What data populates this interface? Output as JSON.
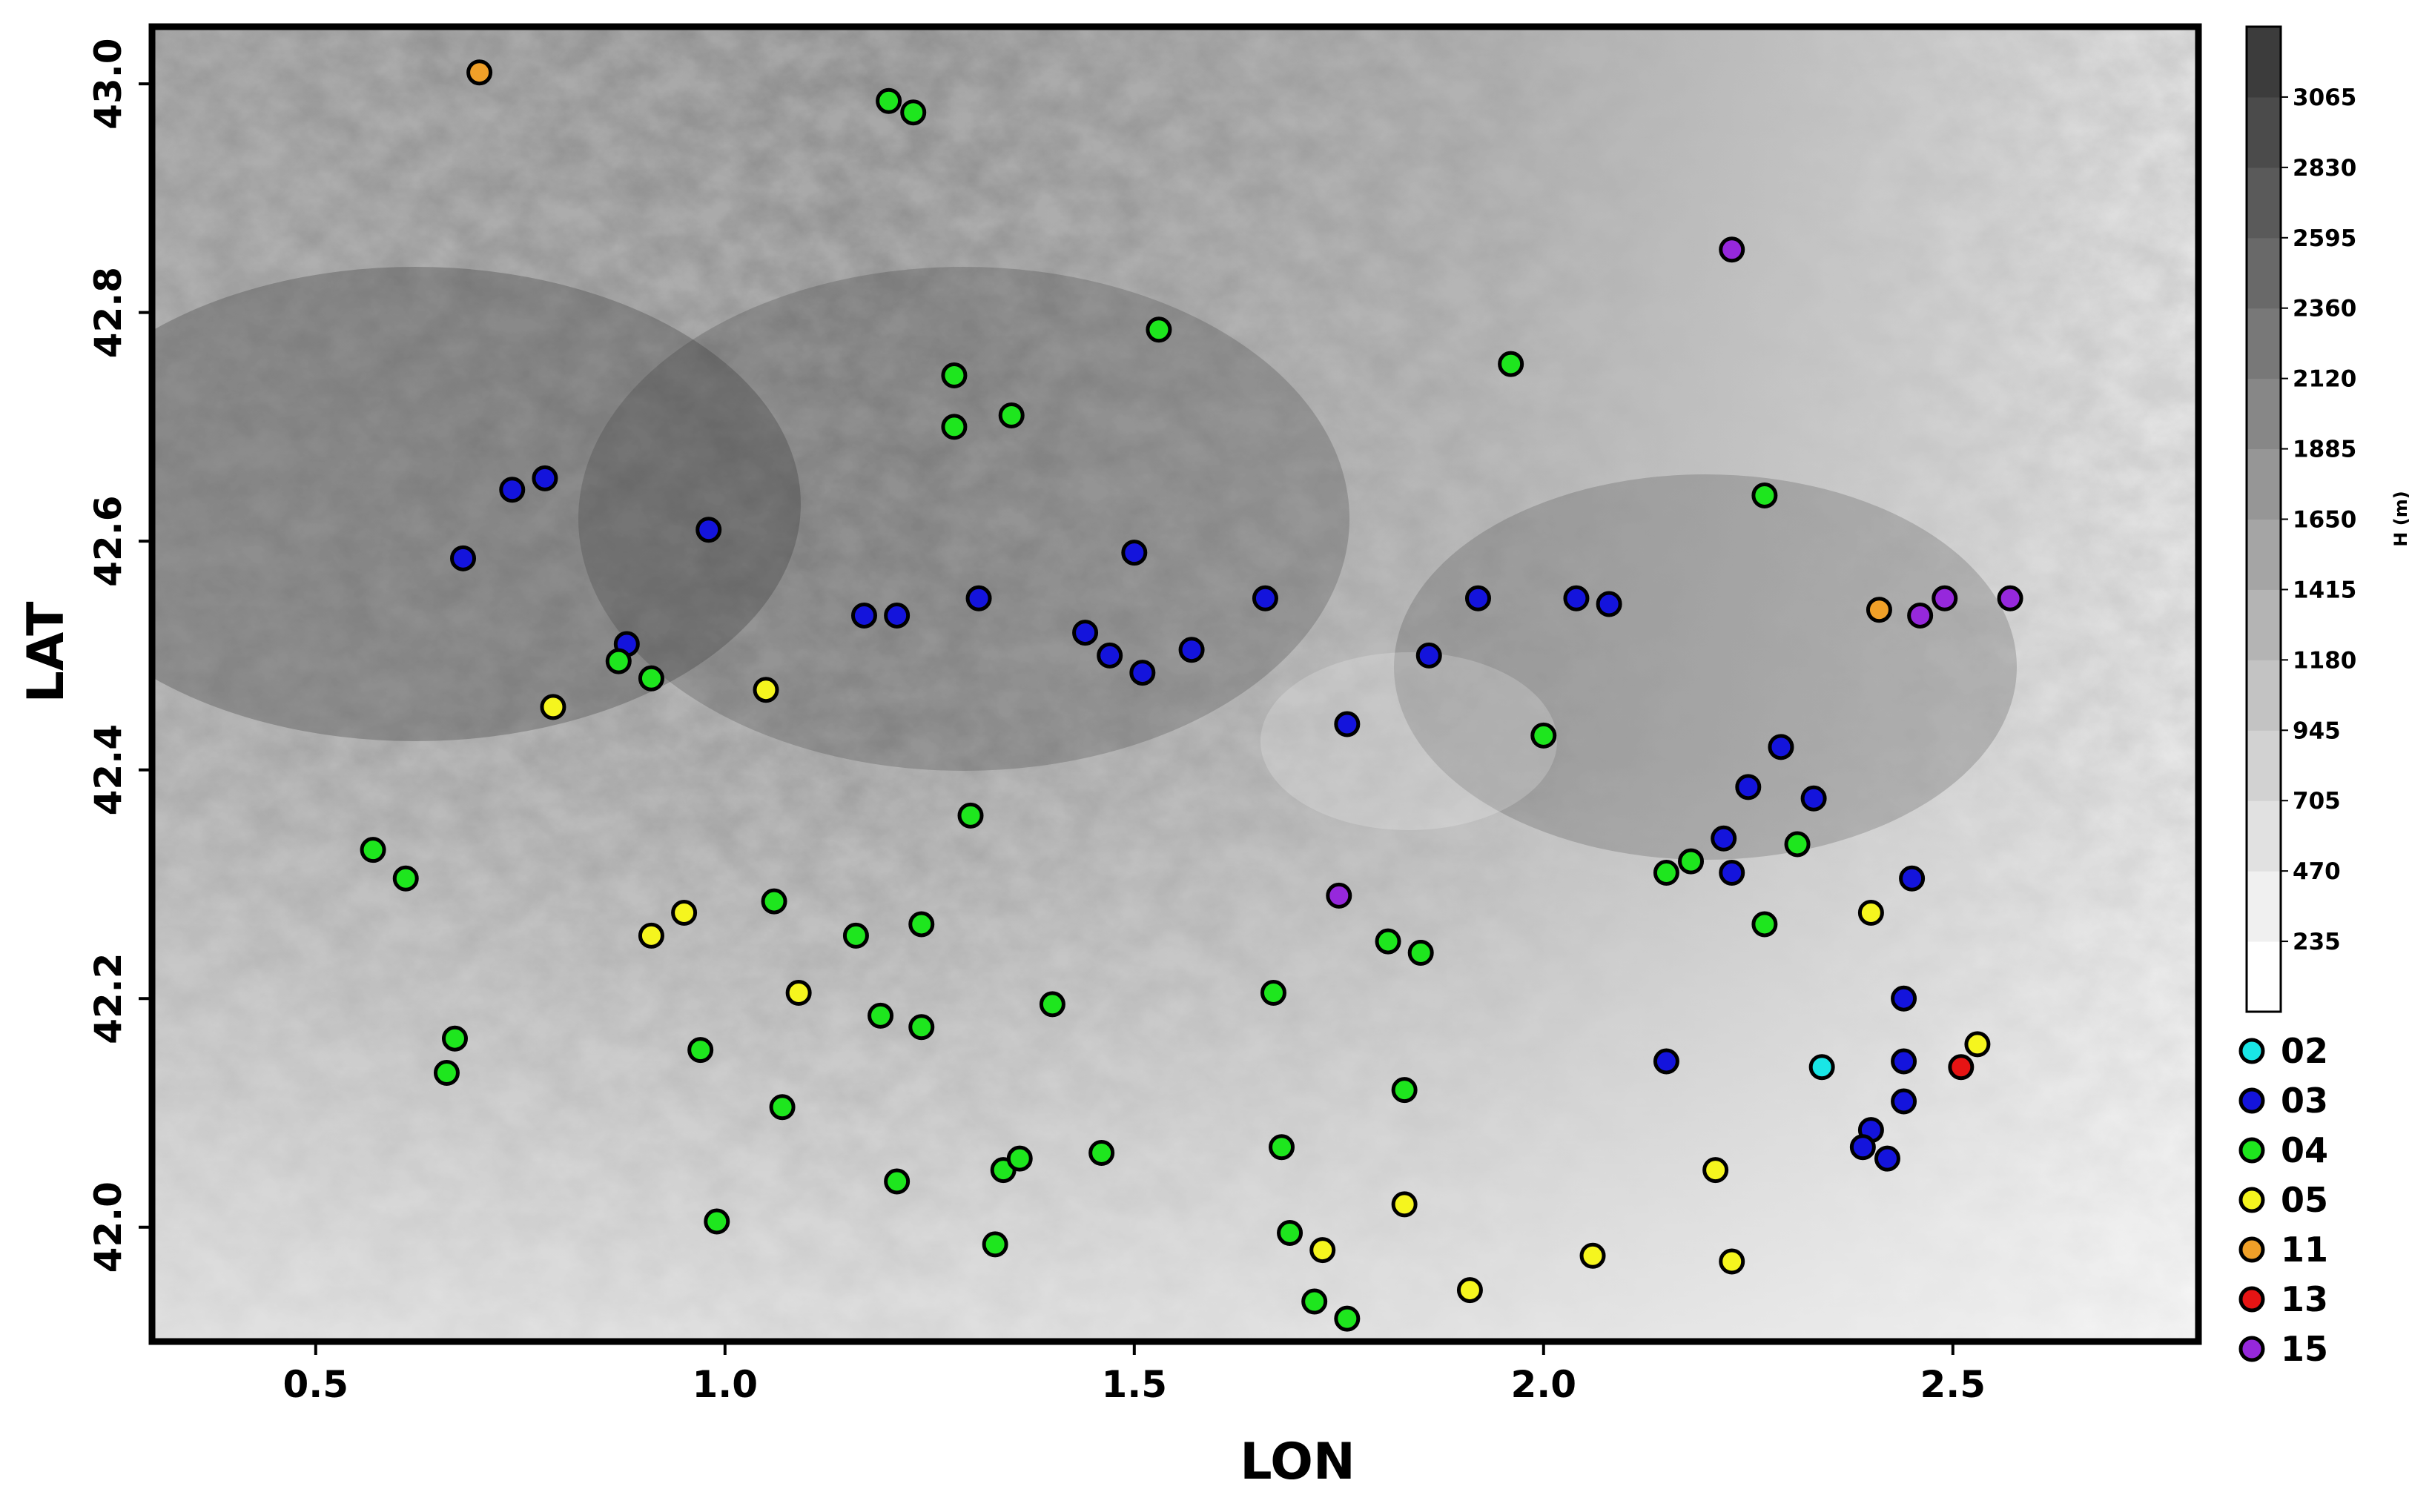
{
  "chart_data": {
    "type": "scatter",
    "background": "digital elevation map (grayscale relief)",
    "xlabel": "LON",
    "ylabel": "LAT",
    "xlim": [
      0.3,
      2.8
    ],
    "ylim": [
      41.9,
      43.05
    ],
    "x_ticks": [
      0.5,
      1.0,
      1.5,
      2.0,
      2.5
    ],
    "x_tick_labels": [
      "0.5",
      "1.0",
      "1.5",
      "2.0",
      "2.5"
    ],
    "y_ticks": [
      42.0,
      42.2,
      42.4,
      42.6,
      42.8,
      43.0
    ],
    "y_tick_labels": [
      "42.0",
      "42.2",
      "42.4",
      "42.6",
      "42.8",
      "43.0"
    ],
    "grid": false,
    "legend_position": "bottom-right (outside plot)",
    "legend": [
      {
        "label": "02",
        "color": "#19e6e6"
      },
      {
        "label": "03",
        "color": "#1414dc"
      },
      {
        "label": "04",
        "color": "#1ee61e"
      },
      {
        "label": "05",
        "color": "#f5f51e"
      },
      {
        "label": "11",
        "color": "#f0a028"
      },
      {
        "label": "13",
        "color": "#e61414"
      },
      {
        "label": "15",
        "color": "#9628dc"
      }
    ],
    "colorbar": {
      "title": "H (m)",
      "tick_labels": [
        "235",
        "470",
        "705",
        "945",
        "1180",
        "1415",
        "1650",
        "1885",
        "2120",
        "2360",
        "2595",
        "2830",
        "3065"
      ],
      "colors": [
        "#ffffff",
        "#f0f0f0",
        "#e1e1e1",
        "#d2d2d2",
        "#c3c3c3",
        "#b4b4b4",
        "#a5a5a5",
        "#969696",
        "#878787",
        "#787878",
        "#696969",
        "#5a5a5a",
        "#4b4b4b",
        "#3c3c3c"
      ]
    },
    "series": [
      {
        "category": "02",
        "color": "#19e6e6",
        "points": [
          [
            2.34,
            42.14
          ]
        ]
      },
      {
        "category": "03",
        "color": "#1414dc",
        "points": [
          [
            0.68,
            42.585
          ],
          [
            0.74,
            42.645
          ],
          [
            0.78,
            42.655
          ],
          [
            0.88,
            42.51
          ],
          [
            0.98,
            42.61
          ],
          [
            1.17,
            42.535
          ],
          [
            1.21,
            42.535
          ],
          [
            1.31,
            42.55
          ],
          [
            1.44,
            42.52
          ],
          [
            1.47,
            42.5
          ],
          [
            1.5,
            42.59
          ],
          [
            1.51,
            42.485
          ],
          [
            1.57,
            42.505
          ],
          [
            1.66,
            42.55
          ],
          [
            1.76,
            42.44
          ],
          [
            1.86,
            42.5
          ],
          [
            1.92,
            42.55
          ],
          [
            2.04,
            42.55
          ],
          [
            2.08,
            42.545
          ],
          [
            2.15,
            42.145
          ],
          [
            2.22,
            42.34
          ],
          [
            2.23,
            42.31
          ],
          [
            2.25,
            42.385
          ],
          [
            2.29,
            42.42
          ],
          [
            2.33,
            42.375
          ],
          [
            2.45,
            42.305
          ],
          [
            2.44,
            42.2
          ],
          [
            2.44,
            42.145
          ],
          [
            2.44,
            42.11
          ],
          [
            2.4,
            42.085
          ],
          [
            2.39,
            42.07
          ],
          [
            2.42,
            42.06
          ]
        ]
      },
      {
        "category": "04",
        "color": "#1ee61e",
        "points": [
          [
            0.57,
            42.33
          ],
          [
            0.61,
            42.305
          ],
          [
            0.67,
            42.165
          ],
          [
            0.66,
            42.135
          ],
          [
            0.87,
            42.495
          ],
          [
            0.91,
            42.48
          ],
          [
            0.97,
            42.155
          ],
          [
            0.99,
            42.005
          ],
          [
            1.06,
            42.285
          ],
          [
            1.07,
            42.105
          ],
          [
            1.16,
            42.255
          ],
          [
            1.19,
            42.185
          ],
          [
            1.2,
            42.985
          ],
          [
            1.23,
            42.975
          ],
          [
            1.24,
            42.265
          ],
          [
            1.24,
            42.175
          ],
          [
            1.21,
            42.04
          ],
          [
            1.28,
            42.745
          ],
          [
            1.28,
            42.7
          ],
          [
            1.3,
            42.36
          ],
          [
            1.35,
            42.71
          ],
          [
            1.34,
            42.05
          ],
          [
            1.36,
            42.06
          ],
          [
            1.33,
            41.985
          ],
          [
            1.4,
            42.195
          ],
          [
            1.46,
            42.065
          ],
          [
            1.53,
            42.785
          ],
          [
            1.67,
            42.205
          ],
          [
            1.68,
            42.07
          ],
          [
            1.69,
            41.995
          ],
          [
            1.72,
            41.935
          ],
          [
            1.76,
            41.92
          ],
          [
            1.81,
            42.25
          ],
          [
            1.85,
            42.24
          ],
          [
            1.83,
            42.12
          ],
          [
            1.96,
            42.755
          ],
          [
            2.0,
            42.43
          ],
          [
            2.15,
            42.31
          ],
          [
            2.18,
            42.32
          ],
          [
            2.27,
            42.64
          ],
          [
            2.27,
            42.265
          ],
          [
            2.31,
            42.335
          ]
        ]
      },
      {
        "category": "05",
        "color": "#f5f51e",
        "points": [
          [
            0.79,
            42.455
          ],
          [
            0.91,
            42.255
          ],
          [
            0.95,
            42.275
          ],
          [
            1.05,
            42.47
          ],
          [
            1.09,
            42.205
          ],
          [
            1.73,
            41.98
          ],
          [
            1.83,
            42.02
          ],
          [
            1.91,
            41.945
          ],
          [
            2.06,
            41.975
          ],
          [
            2.21,
            42.05
          ],
          [
            2.23,
            41.97
          ],
          [
            2.4,
            42.275
          ],
          [
            2.53,
            42.16
          ]
        ]
      },
      {
        "category": "11",
        "color": "#f0a028",
        "points": [
          [
            0.7,
            43.01
          ],
          [
            2.41,
            42.54
          ]
        ]
      },
      {
        "category": "13",
        "color": "#e61414",
        "points": [
          [
            2.51,
            42.14
          ]
        ]
      },
      {
        "category": "15",
        "color": "#9628dc",
        "points": [
          [
            2.23,
            42.855
          ],
          [
            1.75,
            42.29
          ],
          [
            2.46,
            42.535
          ],
          [
            2.49,
            42.55
          ],
          [
            2.57,
            42.55
          ]
        ]
      }
    ]
  }
}
